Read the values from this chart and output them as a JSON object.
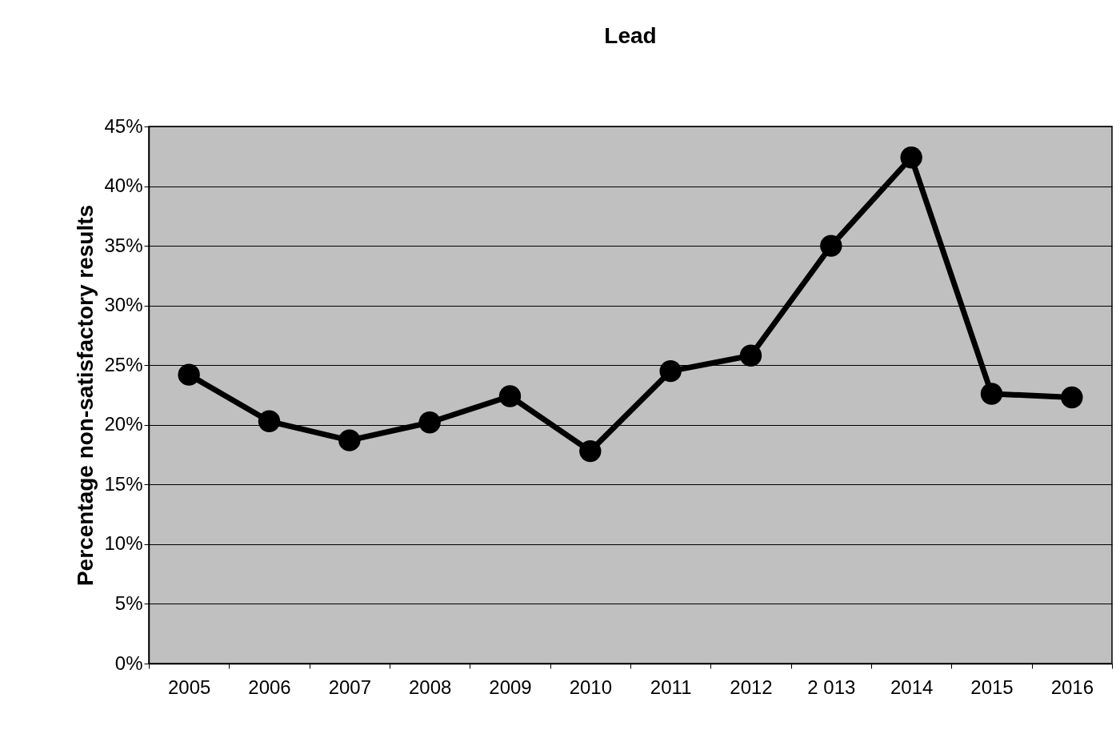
{
  "chart_data": {
    "type": "line",
    "title": "Lead",
    "ylabel": "Percentage non-satisfactory results",
    "categories": [
      "2005",
      "2006",
      "2007",
      "2008",
      "2009",
      "2010",
      "2011",
      "2012",
      "2 013",
      "2014",
      "2015",
      "2016"
    ],
    "series": [
      {
        "color": "#000000",
        "values": [
          24.2,
          20.3,
          18.7,
          20.2,
          22.4,
          17.8,
          24.5,
          25.8,
          35.0,
          42.4,
          22.6,
          22.3
        ]
      }
    ],
    "ylim": [
      0,
      45
    ],
    "yticks": [
      {
        "value": 0,
        "label": "0%"
      },
      {
        "value": 5,
        "label": "5%"
      },
      {
        "value": 10,
        "label": "10%"
      },
      {
        "value": 15,
        "label": "15%"
      },
      {
        "value": 20,
        "label": "20%"
      },
      {
        "value": 25,
        "label": "25%"
      },
      {
        "value": 30,
        "label": "30%"
      },
      {
        "value": 35,
        "label": "35%"
      },
      {
        "value": 40,
        "label": "40%"
      },
      {
        "value": 45,
        "label": "45%"
      }
    ],
    "grid": "y",
    "marker": "circle",
    "line_style": "solid"
  }
}
